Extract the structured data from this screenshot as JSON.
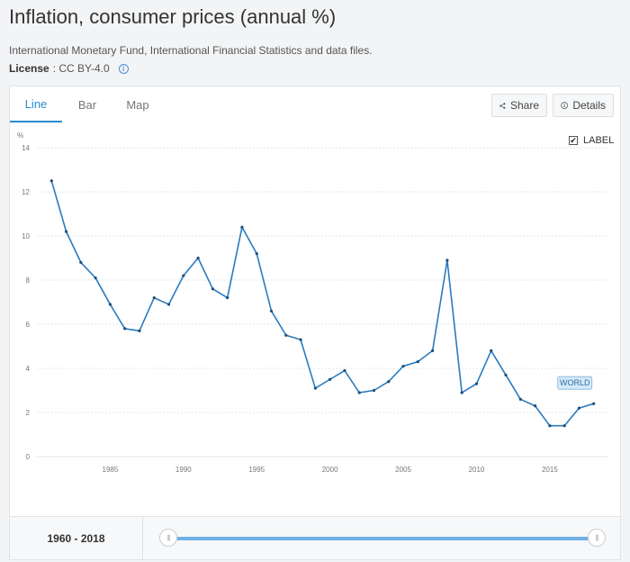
{
  "title": "Inflation, consumer prices (annual %)",
  "source": "International Monetary Fund, International Financial Statistics and data files.",
  "license": {
    "label": "License",
    "value": " : CC BY-4.0"
  },
  "tabs": [
    {
      "label": "Line",
      "active": true
    },
    {
      "label": "Bar",
      "active": false
    },
    {
      "label": "Map",
      "active": false
    }
  ],
  "buttons": {
    "share": "Share",
    "details": "Details"
  },
  "label_toggle": {
    "label": "LABEL",
    "checked": true
  },
  "range": {
    "text": "1960 - 2018"
  },
  "colors": {
    "line": "#2a7bbf",
    "accent": "#2a8ad0",
    "label_bg": "#d6e9f8"
  },
  "chart_data": {
    "type": "line",
    "ylabel": "%",
    "ylim": [
      0,
      14
    ],
    "yticks": [
      0,
      2,
      4,
      6,
      8,
      10,
      12,
      14
    ],
    "xlim": [
      1980,
      2019
    ],
    "xticks": [
      1985,
      1990,
      1995,
      2000,
      2005,
      2010,
      2015
    ],
    "grid": true,
    "series": [
      {
        "name": "WORLD",
        "x": [
          1981,
          1982,
          1983,
          1984,
          1985,
          1986,
          1987,
          1988,
          1989,
          1990,
          1991,
          1992,
          1993,
          1994,
          1995,
          1996,
          1997,
          1998,
          1999,
          2000,
          2001,
          2002,
          2003,
          2004,
          2005,
          2006,
          2007,
          2008,
          2009,
          2010,
          2011,
          2012,
          2013,
          2014,
          2015,
          2016,
          2017,
          2018
        ],
        "values": [
          12.5,
          10.2,
          8.8,
          8.1,
          6.9,
          5.8,
          5.7,
          7.2,
          6.9,
          8.2,
          9.0,
          7.6,
          7.2,
          10.4,
          9.2,
          6.6,
          5.5,
          5.3,
          3.1,
          3.5,
          3.9,
          2.9,
          3.0,
          3.4,
          4.1,
          4.3,
          4.8,
          8.9,
          2.9,
          3.3,
          4.8,
          3.7,
          2.6,
          2.3,
          1.4,
          1.4,
          2.2,
          2.4
        ]
      }
    ]
  }
}
